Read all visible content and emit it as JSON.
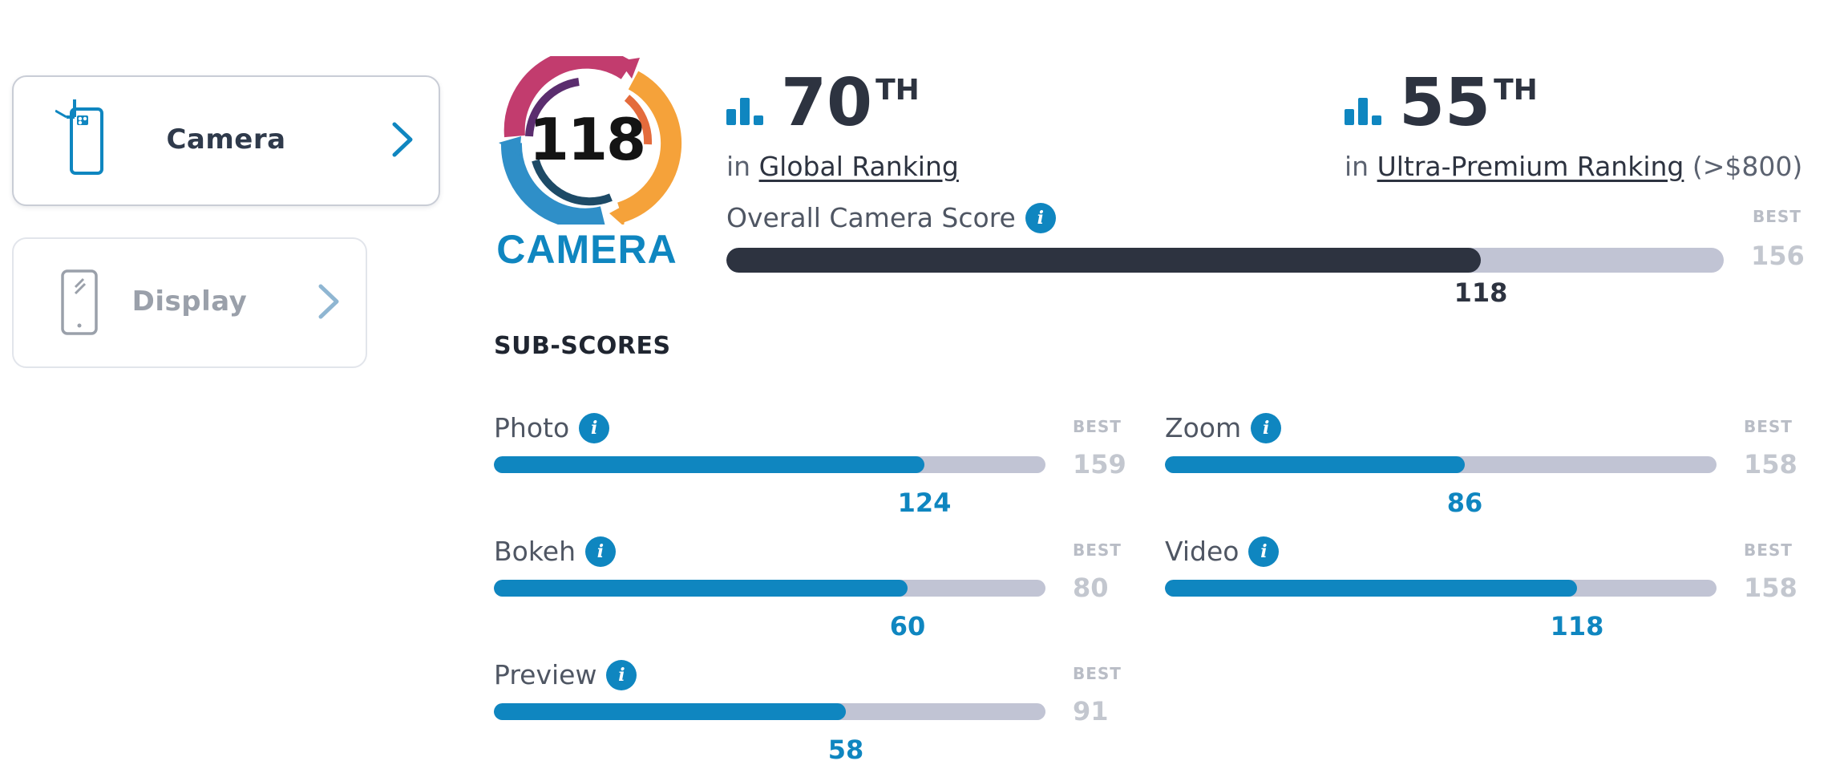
{
  "nav": {
    "camera": {
      "label": "Camera"
    },
    "display": {
      "label": "Display"
    }
  },
  "badge": {
    "score": "118",
    "label": "CAMERA"
  },
  "rankings": {
    "global": {
      "rank": "70",
      "suffix": "TH",
      "prefix": "in",
      "link": "Global Ranking",
      "extra": ""
    },
    "ultra_premium": {
      "rank": "55",
      "suffix": "TH",
      "prefix": "in",
      "link": "Ultra-Premium Ranking",
      "extra": "(>$800)"
    }
  },
  "overall": {
    "title": "Overall Camera Score",
    "best_label": "BEST",
    "best": 156,
    "value": 118
  },
  "subscores_heading": "SUB-SCORES",
  "subscores": [
    {
      "name": "Photo",
      "value": 124,
      "best": 159,
      "best_label": "BEST"
    },
    {
      "name": "Zoom",
      "value": 86,
      "best": 158,
      "best_label": "BEST"
    },
    {
      "name": "Bokeh",
      "value": 60,
      "best": 80,
      "best_label": "BEST"
    },
    {
      "name": "Video",
      "value": 118,
      "best": 158,
      "best_label": "BEST"
    },
    {
      "name": "Preview",
      "value": 58,
      "best": 91,
      "best_label": "BEST"
    }
  ],
  "colors": {
    "accent": "#0f86c0",
    "dark": "#2d3340",
    "track": "#c1c4d4"
  },
  "icons": {
    "camera_nav": "phone-camera-icon",
    "display_nav": "phone-display-icon",
    "chevron": "chevron-right-icon",
    "ranking": "bar-chart-icon",
    "info": "info-icon"
  }
}
